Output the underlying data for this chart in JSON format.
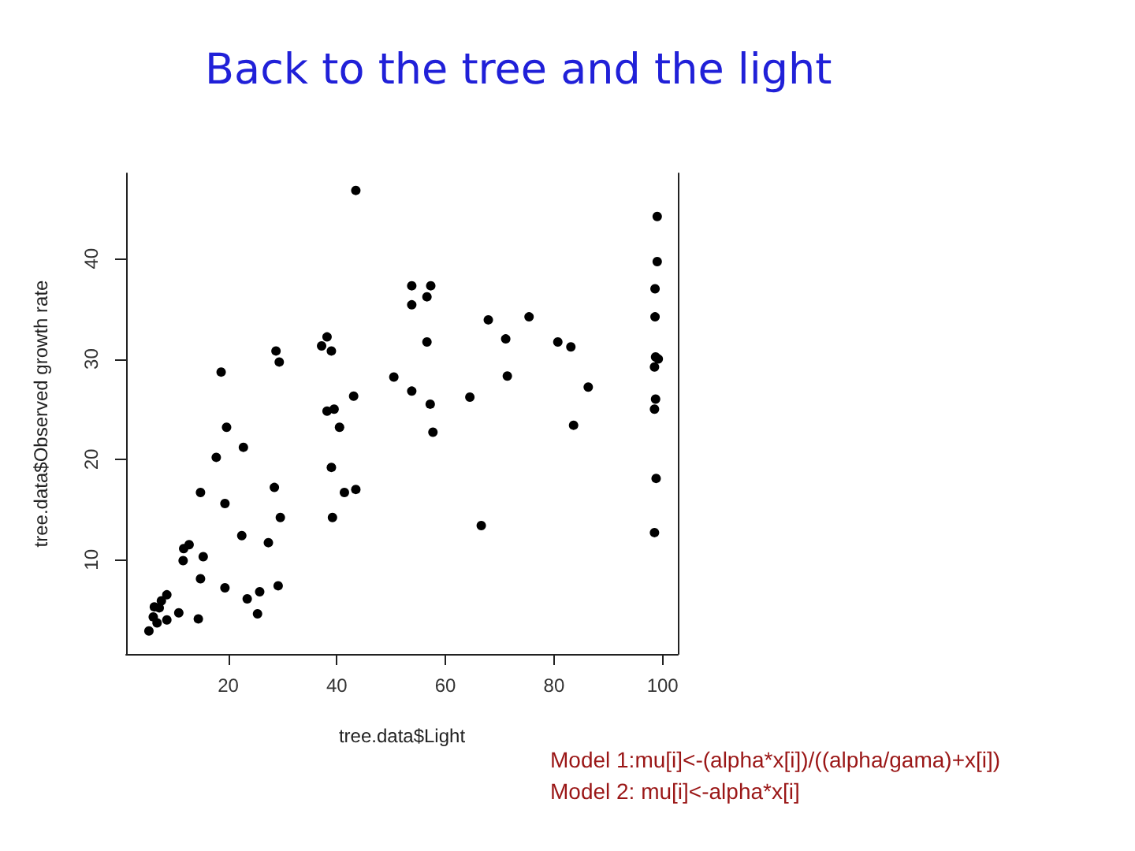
{
  "chart_data": {
    "type": "scatter",
    "title": "Back to the tree and the light",
    "xlabel": "tree.data$Light",
    "ylabel": "tree.data$Observed growth rate",
    "annotations": [
      "Model 1:mu[i]<-(alpha*x[i])/((alpha/gama)+x[i])",
      "Model 2: mu[i]<-alpha*x[i]"
    ],
    "x": [
      43.5,
      38.2,
      37.2,
      39.0,
      28.8,
      29.4,
      18.7,
      50.5,
      43.1,
      38.2,
      39.5,
      19.7,
      40.5,
      22.8,
      17.8,
      39.0,
      14.9,
      28.5,
      41.4,
      43.5,
      19.4,
      29.6,
      39.2,
      22.5,
      27.4,
      11.8,
      12.8,
      15.4,
      11.7,
      14.9,
      19.4,
      29.2,
      25.8,
      23.5,
      8.7,
      7.7,
      6.4,
      7.3,
      10.9,
      6.2,
      8.7,
      14.5,
      25.4,
      6.9,
      5.4,
      99.0,
      99.0,
      98.6,
      98.6,
      53.8,
      57.3,
      56.6,
      53.8,
      67.9,
      75.4,
      71.1,
      56.6,
      80.7,
      83.1,
      98.7,
      99.2,
      98.5,
      71.4,
      53.8,
      64.5,
      86.3,
      57.2,
      98.7,
      98.5,
      57.7,
      83.6,
      98.8,
      66.6,
      98.5
    ],
    "values": [
      46.8,
      32.2,
      31.3,
      30.8,
      30.8,
      29.7,
      28.7,
      28.2,
      26.3,
      24.8,
      25.0,
      23.2,
      23.2,
      21.2,
      20.2,
      19.2,
      16.7,
      17.2,
      16.7,
      17.0,
      15.6,
      14.2,
      14.2,
      12.4,
      11.7,
      11.1,
      11.5,
      10.3,
      9.9,
      8.1,
      7.2,
      7.4,
      6.8,
      6.1,
      6.5,
      5.9,
      5.3,
      5.2,
      4.7,
      4.3,
      4.0,
      4.1,
      4.6,
      3.7,
      2.9,
      44.2,
      39.7,
      37.0,
      34.2,
      37.3,
      37.3,
      36.2,
      35.4,
      33.9,
      34.2,
      32.0,
      31.7,
      31.7,
      31.2,
      30.2,
      30.0,
      29.2,
      28.3,
      26.8,
      26.2,
      27.2,
      25.5,
      26.0,
      25.0,
      22.7,
      23.4,
      18.1,
      13.4,
      12.7
    ],
    "color": "#000000",
    "marker": "circle",
    "xlim": [
      1.2,
      102.8
    ],
    "ylim": [
      0.6,
      48.5
    ],
    "xticks": [
      20,
      40,
      60,
      80,
      100
    ],
    "yticks": [
      10,
      20,
      30,
      40
    ]
  }
}
